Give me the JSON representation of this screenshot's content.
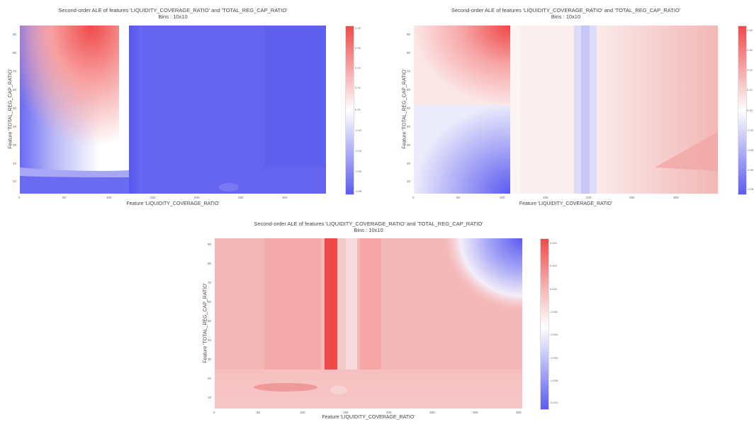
{
  "chart_data": [
    {
      "type": "heatmap",
      "title": "Second-order ALE of features 'LIQUIDITY_COVERAGE_RATIO' and 'TOTAL_REG_CAP_RATIO'",
      "subtitle": "Bins : 10x10",
      "xlabel": "Feature 'LIQUIDITY_COVERAGE_RATIO'",
      "ylabel": "Feature 'TOTAL_REG_CAP_RATIO'",
      "xlim": [
        0,
        350
      ],
      "ylim": [
        2,
        98
      ],
      "xticks": [
        "0",
        "50",
        "100",
        "150",
        "200",
        "250",
        "300"
      ],
      "yticks": [
        "10",
        "20",
        "30",
        "40",
        "50",
        "60",
        "70",
        "80",
        "90"
      ],
      "colorbar_ticks": [
        "0.08",
        "0.06",
        "0.04",
        "0.02",
        "0.00",
        "-0.02",
        "-0.04",
        "-0.06",
        "-0.08"
      ],
      "colormap": [
        "#5b5bf0",
        "#ffffff",
        "#f04a4a"
      ]
    },
    {
      "type": "heatmap",
      "title": "Second-order ALE of features 'LIQUIDITY_COVERAGE_RATIO' and 'TOTAL_REG_CAP_RATIO'",
      "subtitle": "Bins : 10x10",
      "xlabel": "Feature 'LIQUIDITY_COVERAGE_RATIO'",
      "ylabel": "Feature 'TOTAL_REG_CAP_RATIO'",
      "xlim": [
        0,
        350
      ],
      "ylim": [
        2,
        98
      ],
      "xticks": [
        "0",
        "50",
        "100",
        "150",
        "200",
        "250",
        "300"
      ],
      "yticks": [
        "10",
        "20",
        "30",
        "40",
        "50",
        "60",
        "70",
        "80",
        "90"
      ],
      "colorbar_ticks": [
        "0.08",
        "0.06",
        "0.04",
        "0.02",
        "0.00",
        "-0.02",
        "-0.04",
        "-0.06",
        "-0.08"
      ],
      "colormap": [
        "#5b5bf0",
        "#ffffff",
        "#f04a4a"
      ]
    },
    {
      "type": "heatmap",
      "title": "Second-order ALE of features 'LIQUIDITY_COVERAGE_RATIO' and 'TOTAL_REG_CAP_RATIO'",
      "subtitle": "Bins : 10x10",
      "xlabel": "Feature 'LIQUIDITY_COVERAGE_RATIO'",
      "ylabel": "Feature 'TOTAL_REG_CAP_RATIO'",
      "xlim": [
        0,
        350
      ],
      "ylim": [
        2,
        98
      ],
      "xticks": [
        "0",
        "50",
        "100",
        "150",
        "200",
        "250",
        "300",
        "350"
      ],
      "yticks": [
        "10",
        "20",
        "30",
        "40",
        "50",
        "60",
        "70",
        "80",
        "90"
      ],
      "colorbar_ticks": [
        "0.004",
        "0.002",
        "0.000",
        "-0.002",
        "-0.004",
        "-0.006",
        "-0.008",
        "-0.010"
      ],
      "colormap": [
        "#5b5bf0",
        "#ffffff",
        "#f04a4a"
      ]
    }
  ]
}
